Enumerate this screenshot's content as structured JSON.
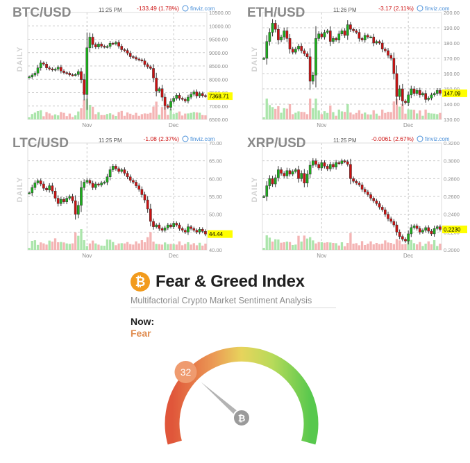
{
  "colors": {
    "up": "#1cad1c",
    "down": "#cc1111",
    "up_vol": "#abe5ab",
    "down_vol": "#f4b4b4",
    "grid": "#c9c9c9",
    "axis_text": "#8d8d8d",
    "title": "#8a8a8a",
    "change": "#cc1111",
    "last_price_bg": "#ffff00",
    "badge": "#ef9b6f",
    "needle": "#b3b3b3"
  },
  "chart_data": [
    {
      "type": "candlestick",
      "pair": "BTC/USD",
      "time": "11:25 PM",
      "change": "-133.49 (1.78%)",
      "source": "finviz.com",
      "side_label": "DAILY",
      "ylim": [
        6500,
        10500
      ],
      "yticks": [
        {
          "v": 10500,
          "t": "10500.00"
        },
        {
          "v": 10000,
          "t": "10000.00"
        },
        {
          "v": 9500,
          "t": "9500.00"
        },
        {
          "v": 9000,
          "t": "9000.00"
        },
        {
          "v": 8500,
          "t": "8500.00"
        },
        {
          "v": 8000,
          "t": "8000.00"
        },
        {
          "v": 7500,
          "t": "7500.00"
        },
        {
          "v": 7000,
          "t": "7000.00"
        },
        {
          "v": 6500,
          "t": "6500.00"
        }
      ],
      "last": 7368.71,
      "last_label": "7368.71",
      "xticks": [
        {
          "i": 20,
          "t": "Nov"
        },
        {
          "i": 50,
          "t": "Dec"
        }
      ],
      "close": [
        8090,
        8160,
        8230,
        8430,
        8610,
        8570,
        8430,
        8390,
        8350,
        8380,
        8450,
        8310,
        8250,
        8230,
        8170,
        8160,
        8180,
        8290,
        7990,
        7430,
        9180,
        9580,
        9300,
        9210,
        9320,
        9240,
        9210,
        9230,
        9350,
        9330,
        9380,
        9240,
        9110,
        9080,
        8980,
        8850,
        8820,
        8760,
        8730,
        8690,
        8550,
        8470,
        8410,
        8050,
        7560,
        7650,
        7330,
        7010,
        6950,
        7170,
        7290,
        7400,
        7290,
        7250,
        7190,
        7330,
        7440,
        7530,
        7380,
        7470,
        7390,
        7369
      ]
    },
    {
      "type": "candlestick",
      "pair": "ETH/USD",
      "time": "11:26 PM",
      "change": "-3.17 (2.11%)",
      "source": "finviz.com",
      "side_label": "DAILY",
      "ylim": [
        130,
        200
      ],
      "yticks": [
        {
          "v": 200,
          "t": "200.00"
        },
        {
          "v": 190,
          "t": "190.00"
        },
        {
          "v": 180,
          "t": "180.00"
        },
        {
          "v": 170,
          "t": "170.00"
        },
        {
          "v": 160,
          "t": "160.00"
        },
        {
          "v": 150,
          "t": "150.00"
        },
        {
          "v": 140,
          "t": "140.00"
        },
        {
          "v": 130,
          "t": "130.00"
        }
      ],
      "last": 147.09,
      "last_label": "147.09",
      "xticks": [
        {
          "i": 20,
          "t": "Nov"
        },
        {
          "i": 50,
          "t": "Dec"
        }
      ],
      "close": [
        170,
        181,
        187,
        193,
        189,
        182,
        184,
        188,
        183,
        176,
        174,
        176,
        178,
        175,
        173,
        171,
        155,
        159,
        183,
        186,
        184,
        187,
        188,
        181,
        183,
        182,
        186,
        188,
        185,
        192,
        189,
        188,
        187,
        183,
        182,
        185,
        184,
        184,
        180,
        181,
        180,
        176,
        175,
        172,
        170,
        160,
        145,
        150,
        142,
        141,
        146,
        150,
        147,
        149,
        146,
        147,
        143,
        144,
        146,
        147,
        149,
        147.09
      ]
    },
    {
      "type": "candlestick",
      "pair": "LTC/USD",
      "time": "11:25 PM",
      "change": "-1.08 (2.37%)",
      "source": "finviz.com",
      "side_label": "DAILY",
      "ylim": [
        40,
        70
      ],
      "yticks": [
        {
          "v": 70,
          "t": "70.00"
        },
        {
          "v": 65,
          "t": "65.00"
        },
        {
          "v": 60,
          "t": "60.00"
        },
        {
          "v": 55,
          "t": "55.00"
        },
        {
          "v": 50,
          "t": "50.00"
        },
        {
          "v": 45,
          "t": "45.00"
        },
        {
          "v": 40,
          "t": "40.00"
        }
      ],
      "last": 44.44,
      "last_label": "44.44",
      "xticks": [
        {
          "i": 20,
          "t": "Nov"
        },
        {
          "i": 50,
          "t": "Dec"
        }
      ],
      "close": [
        56.0,
        57.5,
        58.8,
        59.4,
        58.5,
        57.3,
        56.8,
        58.0,
        56.5,
        54.5,
        53.0,
        54.2,
        53.5,
        54.5,
        55.0,
        53.8,
        50.0,
        52.5,
        57.5,
        59.0,
        59.5,
        58.7,
        57.5,
        58.5,
        58.2,
        58.8,
        59.0,
        60.5,
        62.5,
        63.5,
        62.8,
        62.0,
        62.5,
        61.5,
        60.5,
        59.5,
        59.0,
        58.0,
        57.0,
        55.5,
        54.0,
        51.5,
        48.0,
        46.5,
        47.0,
        46.0,
        45.5,
        46.2,
        47.0,
        46.5,
        47.5,
        47.0,
        46.0,
        45.5,
        45.0,
        46.5,
        46.0,
        45.5,
        45.0,
        45.8,
        45.2,
        44.44
      ]
    },
    {
      "type": "candlestick",
      "pair": "XRP/USD",
      "time": "11:25 PM",
      "change": "-0.0061 (2.67%)",
      "source": "finviz.com",
      "side_label": "DAILY",
      "ylim": [
        0.2,
        0.32
      ],
      "yticks": [
        {
          "v": 0.32,
          "t": "0.3200"
        },
        {
          "v": 0.3,
          "t": "0.3000"
        },
        {
          "v": 0.28,
          "t": "0.2800"
        },
        {
          "v": 0.26,
          "t": "0.2600"
        },
        {
          "v": 0.24,
          "t": "0.2400"
        },
        {
          "v": 0.22,
          "t": "0.2200"
        },
        {
          "v": 0.2,
          "t": "0.2000"
        }
      ],
      "last": 0.223,
      "last_label": "0.2230",
      "xticks": [
        {
          "i": 20,
          "t": "Nov"
        },
        {
          "i": 50,
          "t": "Dec"
        }
      ],
      "close": [
        0.26,
        0.272,
        0.28,
        0.274,
        0.281,
        0.29,
        0.286,
        0.283,
        0.289,
        0.285,
        0.288,
        0.29,
        0.28,
        0.286,
        0.275,
        0.285,
        0.295,
        0.3,
        0.296,
        0.292,
        0.298,
        0.294,
        0.291,
        0.296,
        0.293,
        0.298,
        0.297,
        0.3,
        0.299,
        0.296,
        0.28,
        0.277,
        0.275,
        0.273,
        0.268,
        0.265,
        0.262,
        0.258,
        0.255,
        0.252,
        0.248,
        0.245,
        0.24,
        0.235,
        0.232,
        0.228,
        0.22,
        0.215,
        0.212,
        0.21,
        0.218,
        0.225,
        0.227,
        0.224,
        0.22,
        0.222,
        0.225,
        0.221,
        0.218,
        0.224,
        0.226,
        0.223
      ]
    }
  ],
  "fear_greed": {
    "icon": "bitcoin-icon",
    "logo_glyph": "₿",
    "title": "Fear & Greed Index",
    "subtitle": "Multifactorial Crypto Market Sentiment Analysis",
    "now_label": "Now:",
    "classification": "Fear",
    "value": 32,
    "value_label": "32",
    "scale_min": 0,
    "scale_max": 100
  }
}
